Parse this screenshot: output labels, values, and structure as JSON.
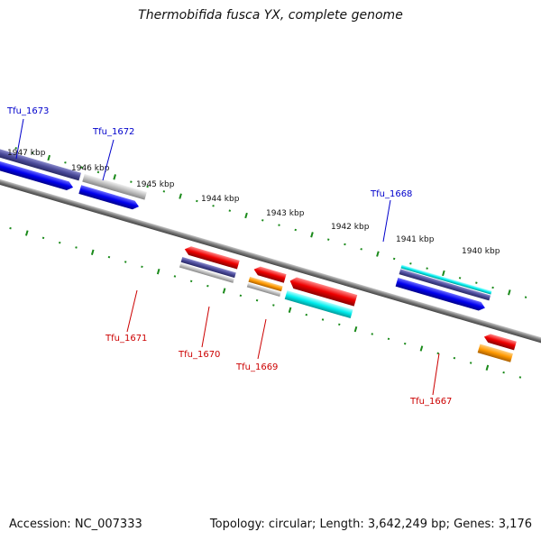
{
  "title": "Thermobifida fusca YX, complete genome",
  "footer": {
    "accession": "Accession: NC_007333",
    "summary": "Topology: circular; Length: 3,642,249 bp; Genes: 3,176"
  },
  "kbp_labels": [
    "1947 kbp",
    "1946 kbp",
    "1945 kbp",
    "1944 kbp",
    "1943 kbp",
    "1942 kbp",
    "1941 kbp",
    "1940 kbp"
  ],
  "genes_forward": [
    {
      "id": "Tfu_1673",
      "label": "Tfu_1673"
    },
    {
      "id": "Tfu_1672",
      "label": "Tfu_1672"
    },
    {
      "id": "Tfu_1668",
      "label": "Tfu_1668"
    }
  ],
  "genes_reverse": [
    {
      "id": "Tfu_1671",
      "label": "Tfu_1671"
    },
    {
      "id": "Tfu_1670",
      "label": "Tfu_1670"
    },
    {
      "id": "Tfu_1669",
      "label": "Tfu_1669"
    },
    {
      "id": "Tfu_1667",
      "label": "Tfu_1667"
    }
  ],
  "colors": {
    "forward_label": "#0000cc",
    "reverse_label": "#cc0000",
    "tick": "#1a8a1a",
    "backbone": "#777777"
  }
}
